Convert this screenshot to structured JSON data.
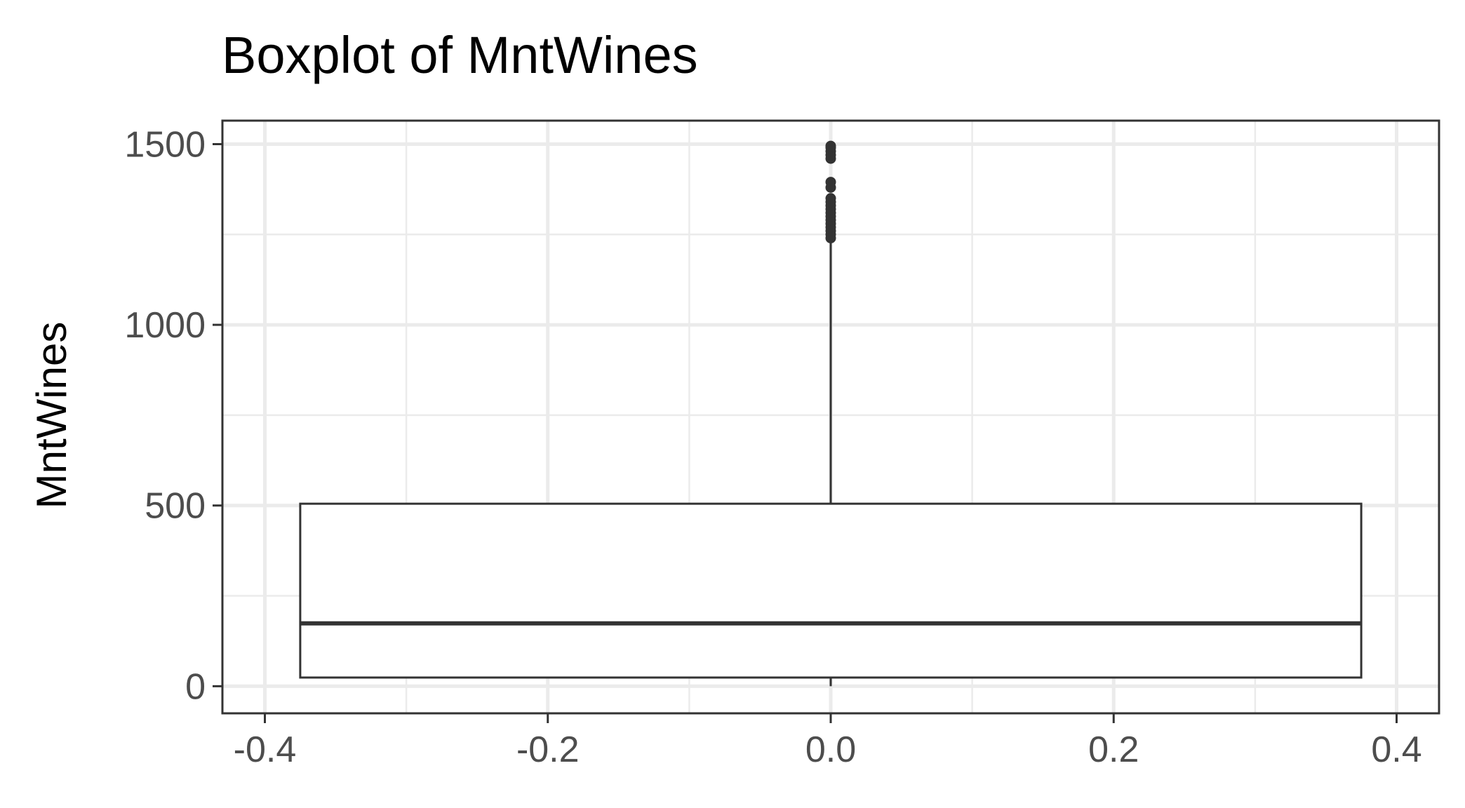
{
  "chart_data": {
    "type": "boxplot",
    "title": "Boxplot of MntWines",
    "xlabel": "",
    "ylabel": "MntWines",
    "xlim": [
      -0.43,
      0.43
    ],
    "ylim": [
      -75,
      1565
    ],
    "x_ticks": [
      -0.4,
      -0.2,
      0.0,
      0.2,
      0.4
    ],
    "x_tick_labels": [
      "-0.4",
      "-0.2",
      "0.0",
      "0.2",
      "0.4"
    ],
    "y_ticks": [
      0,
      500,
      1000,
      1500
    ],
    "y_tick_labels": [
      "0",
      "500",
      "1000",
      "1500"
    ],
    "grid": true,
    "box": {
      "x_center": 0.0,
      "x_min": -0.375,
      "x_max": 0.375,
      "min": 0,
      "q1": 24,
      "median": 174,
      "q3": 505,
      "whisker_high": 1230,
      "outliers": [
        1240,
        1250,
        1260,
        1270,
        1280,
        1290,
        1300,
        1310,
        1320,
        1330,
        1340,
        1350,
        1380,
        1395,
        1460,
        1470,
        1480,
        1490,
        1495
      ]
    },
    "colors": {
      "box_fill": "#ffffff",
      "line": "#333333",
      "grid": "#ebebeb",
      "tick_text": "#4d4d4d",
      "title": "#000000"
    }
  }
}
